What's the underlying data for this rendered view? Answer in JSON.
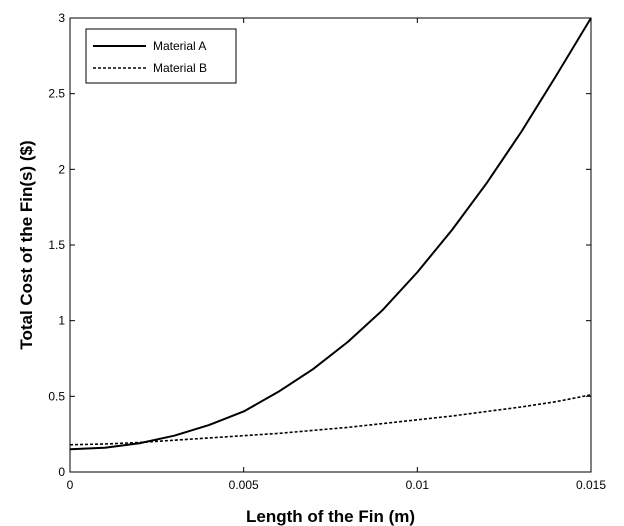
{
  "chart_data": {
    "type": "line",
    "xlabel": "Length of the Fin (m)",
    "ylabel": "Total Cost of the Fin(s) ($)",
    "xlim": [
      0,
      0.015
    ],
    "ylim": [
      0,
      3
    ],
    "x_ticks": [
      0,
      0.005,
      0.01,
      0.015
    ],
    "x_tick_labels": [
      "0",
      "0.005",
      "0.01",
      "0.015"
    ],
    "y_ticks": [
      0,
      0.5,
      1,
      1.5,
      2,
      2.5,
      3
    ],
    "y_tick_labels": [
      "0",
      "0.5",
      "1",
      "1.5",
      "2",
      "2.5",
      "3"
    ],
    "grid": false,
    "legend_position": "top-left",
    "series": [
      {
        "name": "Material A",
        "style": "solid",
        "color": "#000000",
        "x": [
          0,
          0.001,
          0.002,
          0.003,
          0.004,
          0.005,
          0.006,
          0.007,
          0.008,
          0.009,
          0.01,
          0.011,
          0.012,
          0.013,
          0.014,
          0.015
        ],
        "y": [
          0.15,
          0.16,
          0.19,
          0.24,
          0.31,
          0.4,
          0.53,
          0.68,
          0.86,
          1.07,
          1.32,
          1.6,
          1.91,
          2.25,
          2.62,
          3.0
        ]
      },
      {
        "name": "Material B",
        "style": "dashed",
        "color": "#000000",
        "x": [
          0,
          0.001,
          0.002,
          0.003,
          0.004,
          0.005,
          0.006,
          0.007,
          0.008,
          0.009,
          0.01,
          0.011,
          0.012,
          0.013,
          0.014,
          0.015
        ],
        "y": [
          0.18,
          0.185,
          0.195,
          0.21,
          0.225,
          0.24,
          0.255,
          0.275,
          0.295,
          0.32,
          0.345,
          0.37,
          0.4,
          0.43,
          0.465,
          0.51
        ]
      }
    ]
  }
}
